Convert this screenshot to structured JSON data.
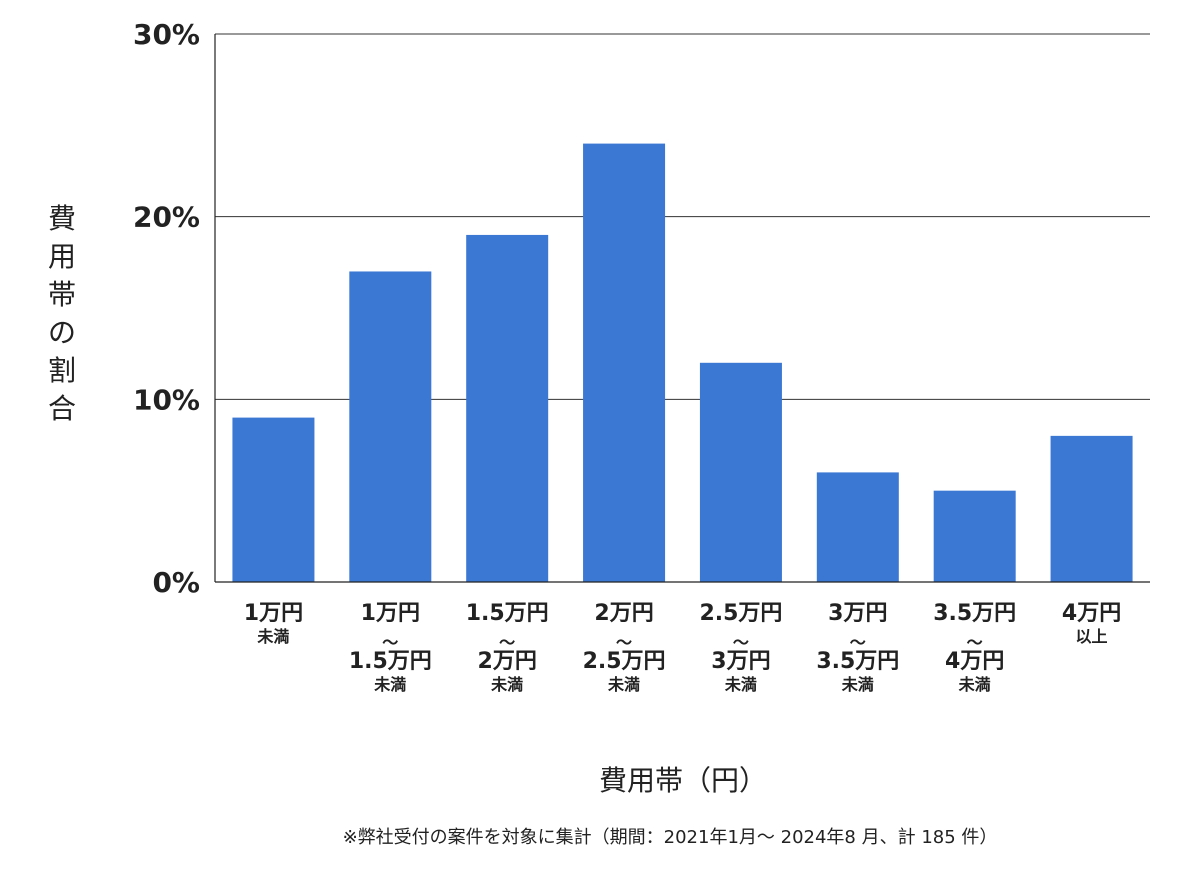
{
  "chart_data": {
    "type": "bar",
    "categories": [
      "1万円未満",
      "1万円〜1.5万円未満",
      "1.5万円〜2万円未満",
      "2万円〜2.5万円未満",
      "2.5万円〜3万円未満",
      "3万円〜3.5万円未満",
      "3.5万円〜4万円未満",
      "4万円以上"
    ],
    "category_labels": [
      [
        "1万円",
        "未満"
      ],
      [
        "1万円",
        "〜",
        "1.5万円",
        "未満"
      ],
      [
        "1.5万円",
        "〜",
        "2万円",
        "未満"
      ],
      [
        "2万円",
        "〜",
        "2.5万円",
        "未満"
      ],
      [
        "2.5万円",
        "〜",
        "3万円",
        "未満"
      ],
      [
        "3万円",
        "〜",
        "3.5万円",
        "未満"
      ],
      [
        "3.5万円",
        "〜",
        "4万円",
        "未満"
      ],
      [
        "4万円",
        "以上"
      ]
    ],
    "values": [
      9,
      17,
      19,
      24,
      12,
      6,
      5,
      8
    ],
    "title": "",
    "xlabel": "費用帯（円）",
    "ylabel": "費用帯の割合",
    "ylim": [
      0,
      30
    ],
    "yticks": [
      0,
      10,
      20,
      30
    ],
    "ytick_labels": [
      "0%",
      "10%",
      "20%",
      "30%"
    ],
    "grid": true,
    "legend": "none",
    "bar_color": "#3b78d4",
    "footnote": "※弊社受付の案件を対象に集計（期間：2021年1月〜 2024年8 月、計 185 件）"
  }
}
